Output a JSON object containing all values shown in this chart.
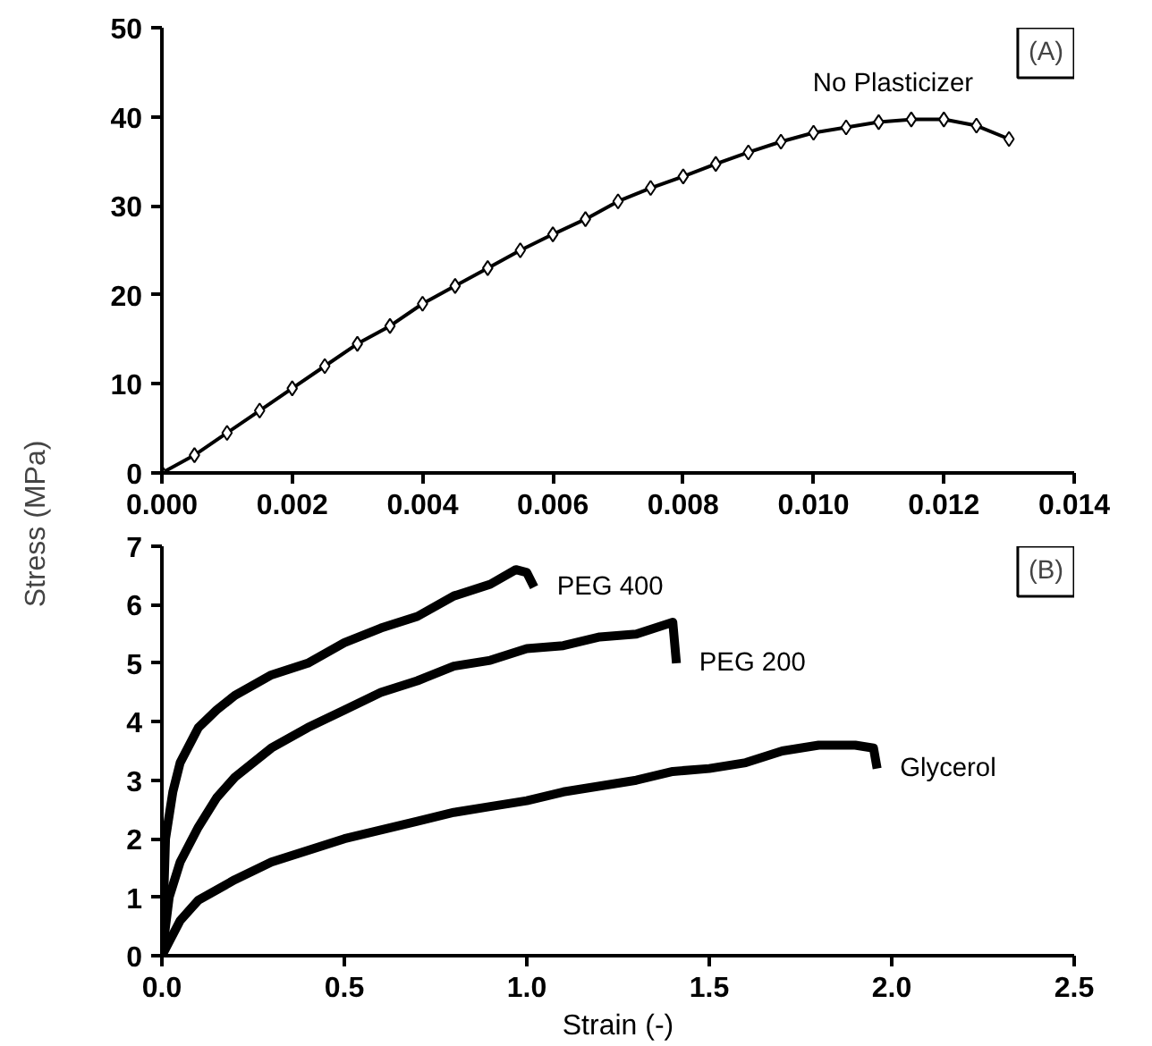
{
  "chart_data": [
    {
      "type": "line",
      "ylabel": "Stress (MPa)",
      "annotations": [
        "(A)"
      ],
      "marker": "diamond",
      "grid": false,
      "xlim": [
        0,
        0.014
      ],
      "ylim": [
        0,
        50
      ],
      "xticks": [
        {
          "value": 0,
          "label": "0.000"
        },
        {
          "value": 0.002,
          "label": "0.002"
        },
        {
          "value": 0.004,
          "label": "0.004"
        },
        {
          "value": 0.006,
          "label": "0.006"
        },
        {
          "value": 0.008,
          "label": "0.008"
        },
        {
          "value": 0.01,
          "label": "0.010"
        },
        {
          "value": 0.012,
          "label": "0.012"
        },
        {
          "value": 0.014,
          "label": "0.014"
        }
      ],
      "yticks": [
        0,
        10,
        20,
        30,
        40,
        50
      ],
      "x": [
        0,
        0.0005,
        0.001,
        0.0015,
        0.002,
        0.0025,
        0.003,
        0.0035,
        0.004,
        0.0045,
        0.005,
        0.0055,
        0.006,
        0.0065,
        0.007,
        0.0075,
        0.008,
        0.0085,
        0.009,
        0.0095,
        0.01,
        0.0105,
        0.011,
        0.0115,
        0.012,
        0.0125,
        0.013
      ],
      "series": [
        {
          "name": "No Plasticizer",
          "color": "#000000",
          "values": [
            0,
            2,
            4.5,
            7,
            9.5,
            12,
            14.5,
            16.5,
            19,
            21,
            23,
            25,
            26.8,
            28.5,
            30.5,
            32,
            33.3,
            34.7,
            36,
            37.2,
            38.2,
            38.8,
            39.4,
            39.7,
            39.7,
            39,
            37.5
          ]
        }
      ]
    },
    {
      "type": "line",
      "xlabel": "Strain (-)",
      "annotations": [
        "(B)"
      ],
      "grid": false,
      "xlim": [
        0,
        2.5
      ],
      "ylim": [
        0,
        7
      ],
      "xticks": [
        {
          "value": 0,
          "label": "0.0"
        },
        {
          "value": 0.5,
          "label": "0.5"
        },
        {
          "value": 1,
          "label": "1.0"
        },
        {
          "value": 1.5,
          "label": "1.5"
        },
        {
          "value": 2,
          "label": "2.0"
        },
        {
          "value": 2.5,
          "label": "2.5"
        }
      ],
      "yticks": [
        0,
        1,
        2,
        3,
        4,
        5,
        6,
        7
      ],
      "series": [
        {
          "name": "PEG 400",
          "color": "#000000",
          "x": [
            0,
            0.01,
            0.03,
            0.05,
            0.1,
            0.15,
            0.2,
            0.3,
            0.4,
            0.5,
            0.6,
            0.7,
            0.8,
            0.9,
            0.97,
            1.0,
            1.02
          ],
          "values": [
            0,
            2,
            2.8,
            3.3,
            3.9,
            4.2,
            4.45,
            4.8,
            5.0,
            5.35,
            5.6,
            5.8,
            6.15,
            6.35,
            6.6,
            6.55,
            6.3
          ]
        },
        {
          "name": "PEG 200",
          "color": "#000000",
          "x": [
            0,
            0.02,
            0.05,
            0.1,
            0.15,
            0.2,
            0.3,
            0.4,
            0.5,
            0.6,
            0.7,
            0.8,
            0.9,
            1.0,
            1.1,
            1.2,
            1.3,
            1.4,
            1.41
          ],
          "values": [
            0,
            1,
            1.6,
            2.2,
            2.7,
            3.05,
            3.55,
            3.9,
            4.2,
            4.5,
            4.7,
            4.95,
            5.05,
            5.25,
            5.3,
            5.45,
            5.5,
            5.7,
            5.0
          ]
        },
        {
          "name": "Glycerol",
          "color": "#000000",
          "x": [
            0,
            0.05,
            0.1,
            0.2,
            0.3,
            0.4,
            0.5,
            0.6,
            0.7,
            0.8,
            0.9,
            1.0,
            1.1,
            1.2,
            1.3,
            1.4,
            1.5,
            1.6,
            1.7,
            1.8,
            1.9,
            1.95,
            1.96
          ],
          "values": [
            0,
            0.6,
            0.95,
            1.3,
            1.6,
            1.8,
            2.0,
            2.15,
            2.3,
            2.45,
            2.55,
            2.65,
            2.8,
            2.9,
            3.0,
            3.15,
            3.2,
            3.3,
            3.5,
            3.6,
            3.6,
            3.55,
            3.2
          ]
        }
      ]
    }
  ]
}
